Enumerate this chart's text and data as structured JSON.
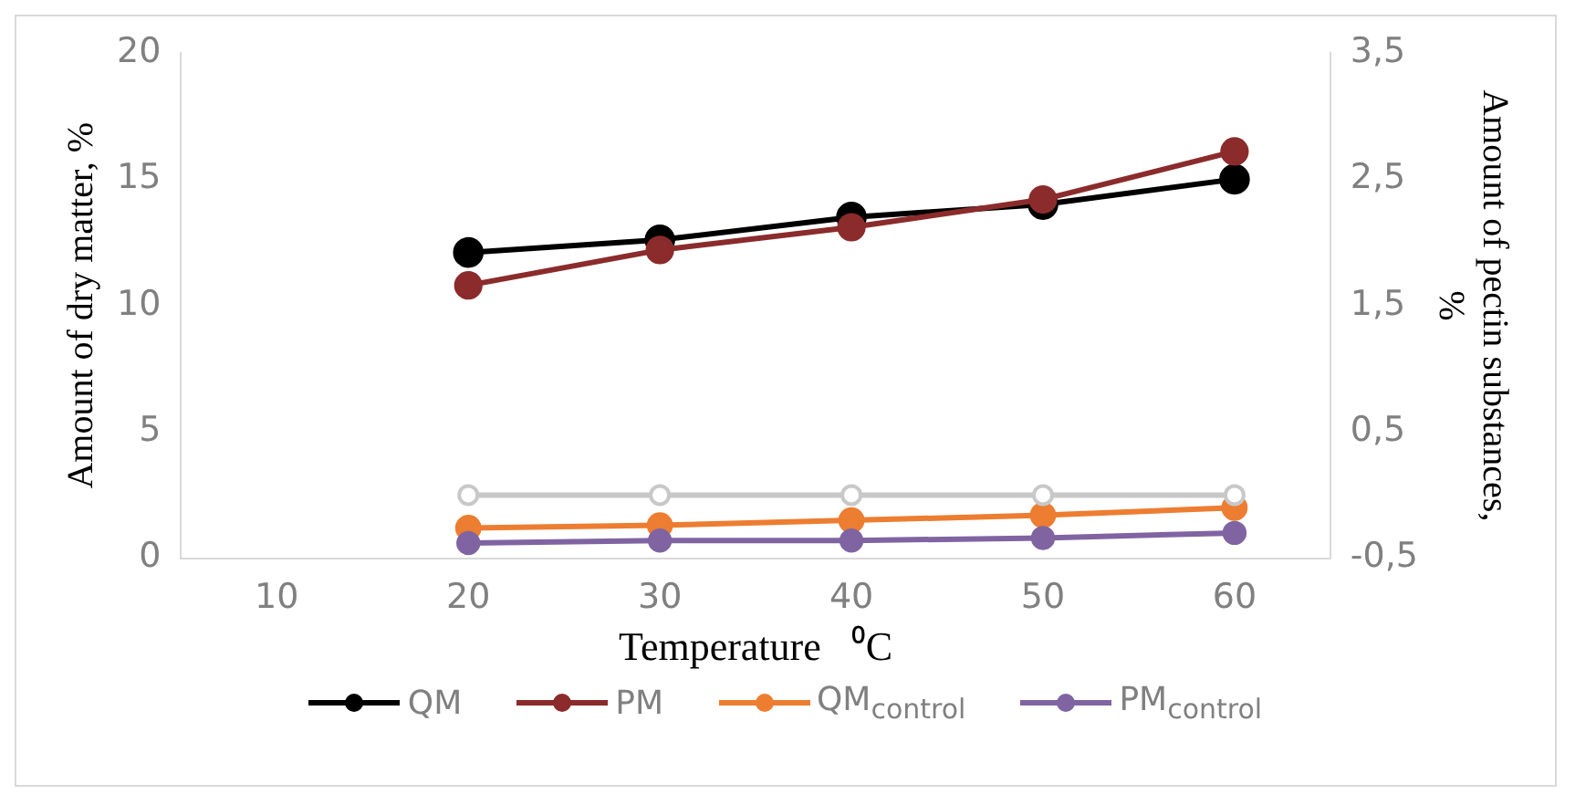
{
  "chart_data": {
    "type": "line",
    "xlabel": "Temperature   ⁰C",
    "ylabel": "Amount of dry matter, %",
    "y2label": "Amount of pectin substances, %",
    "categories": [
      "10",
      "20",
      "30",
      "40",
      "50",
      "60"
    ],
    "ylim": [
      0,
      20
    ],
    "yticks": [
      0,
      5,
      10,
      15,
      20
    ],
    "y2lim": [
      -0.5,
      3.5
    ],
    "y2ticks": [
      {
        "value": -0.5,
        "label": "-0,5"
      },
      {
        "value": 0.5,
        "label": "0,5"
      },
      {
        "value": 1.5,
        "label": "1,5"
      },
      {
        "value": 2.5,
        "label": "2,5"
      },
      {
        "value": 3.5,
        "label": "3,5"
      }
    ],
    "marker": "circle",
    "grid": false,
    "legend": "bottom",
    "series": [
      {
        "name": "QM",
        "color": "#000000",
        "values": [
          null,
          12.1,
          12.6,
          13.5,
          14.0,
          15.0
        ]
      },
      {
        "name": "PM",
        "color": "#8b2b2b",
        "values": [
          null,
          10.8,
          12.2,
          13.1,
          14.2,
          16.1
        ]
      },
      {
        "name": "QM$_{control}$",
        "color": "#ed7d31",
        "values": [
          null,
          1.2,
          1.3,
          1.5,
          1.7,
          2.0
        ]
      },
      {
        "name": "PM$_{control}$",
        "color": "#8064a2",
        "values": [
          null,
          0.6,
          0.7,
          0.7,
          0.8,
          1.0
        ]
      },
      {
        "color": "#c8c8c8",
        "axis": "y2",
        "values": [
          null,
          0,
          0,
          0,
          0,
          0
        ]
      }
    ]
  }
}
